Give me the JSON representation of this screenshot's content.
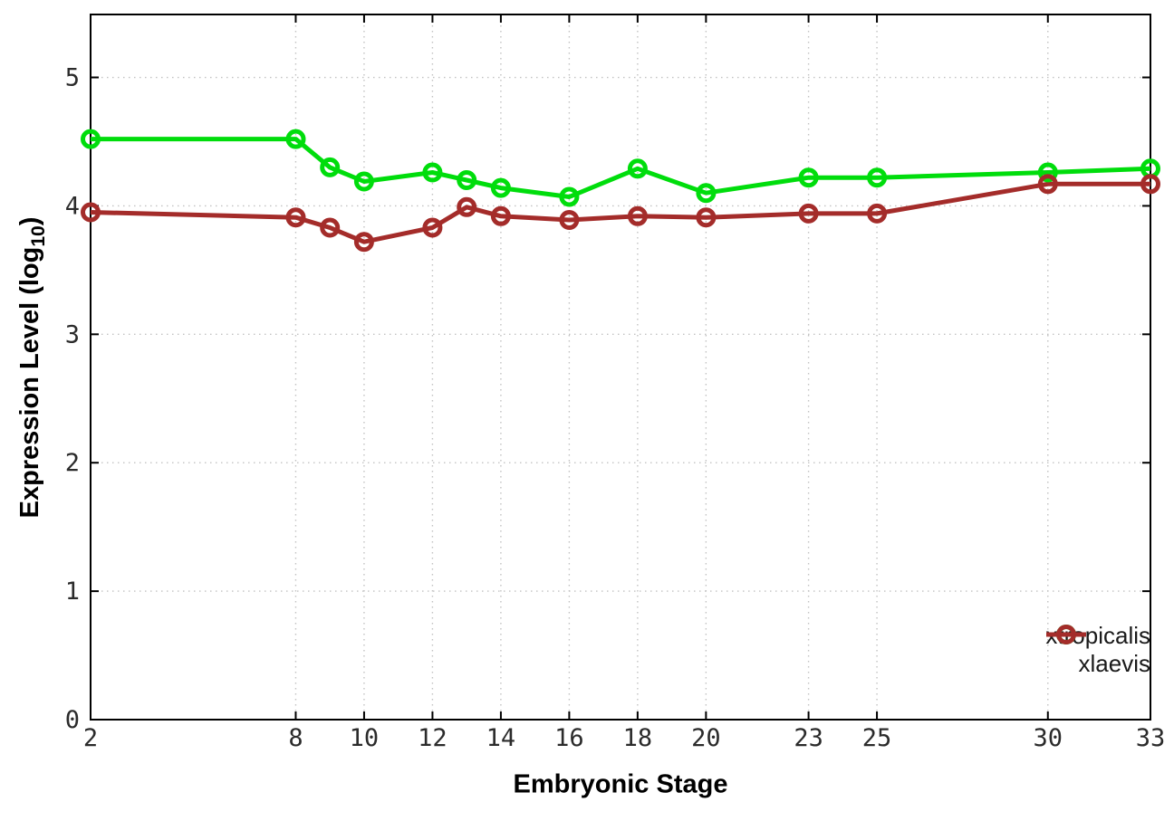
{
  "chart_data": {
    "type": "line",
    "title": "",
    "xlabel": "Embryonic Stage",
    "ylabel_main": "Expression Level (log",
    "ylabel_sub": "10",
    "ylabel_close": ")",
    "x_ticks": [
      2,
      8,
      10,
      12,
      14,
      16,
      18,
      20,
      23,
      25,
      30,
      33
    ],
    "y_ticks": [
      0,
      1,
      2,
      3,
      4,
      5
    ],
    "xlim": [
      2,
      33
    ],
    "ylim": [
      0,
      5.49
    ],
    "grid": true,
    "legend_position": "inside-bottom-right",
    "x": [
      2,
      8,
      9,
      10,
      12,
      13,
      14,
      16,
      18,
      20,
      23,
      25,
      30,
      33
    ],
    "series": [
      {
        "name": "xtropicalis",
        "color": "#00dd0c",
        "values": [
          4.52,
          4.52,
          4.3,
          4.19,
          4.26,
          4.2,
          4.14,
          4.07,
          4.29,
          4.1,
          4.22,
          4.22,
          4.26,
          4.29
        ]
      },
      {
        "name": "xlaevis",
        "color": "#a42c2a",
        "values": [
          3.95,
          3.91,
          3.83,
          3.72,
          3.83,
          3.99,
          3.92,
          3.89,
          3.92,
          3.91,
          3.94,
          3.94,
          4.17,
          4.17
        ]
      }
    ],
    "colors": {
      "background": "#ffffff",
      "border": "#000000",
      "grid": "#c2c2c2",
      "tick_text": "#2b2b2b"
    }
  }
}
